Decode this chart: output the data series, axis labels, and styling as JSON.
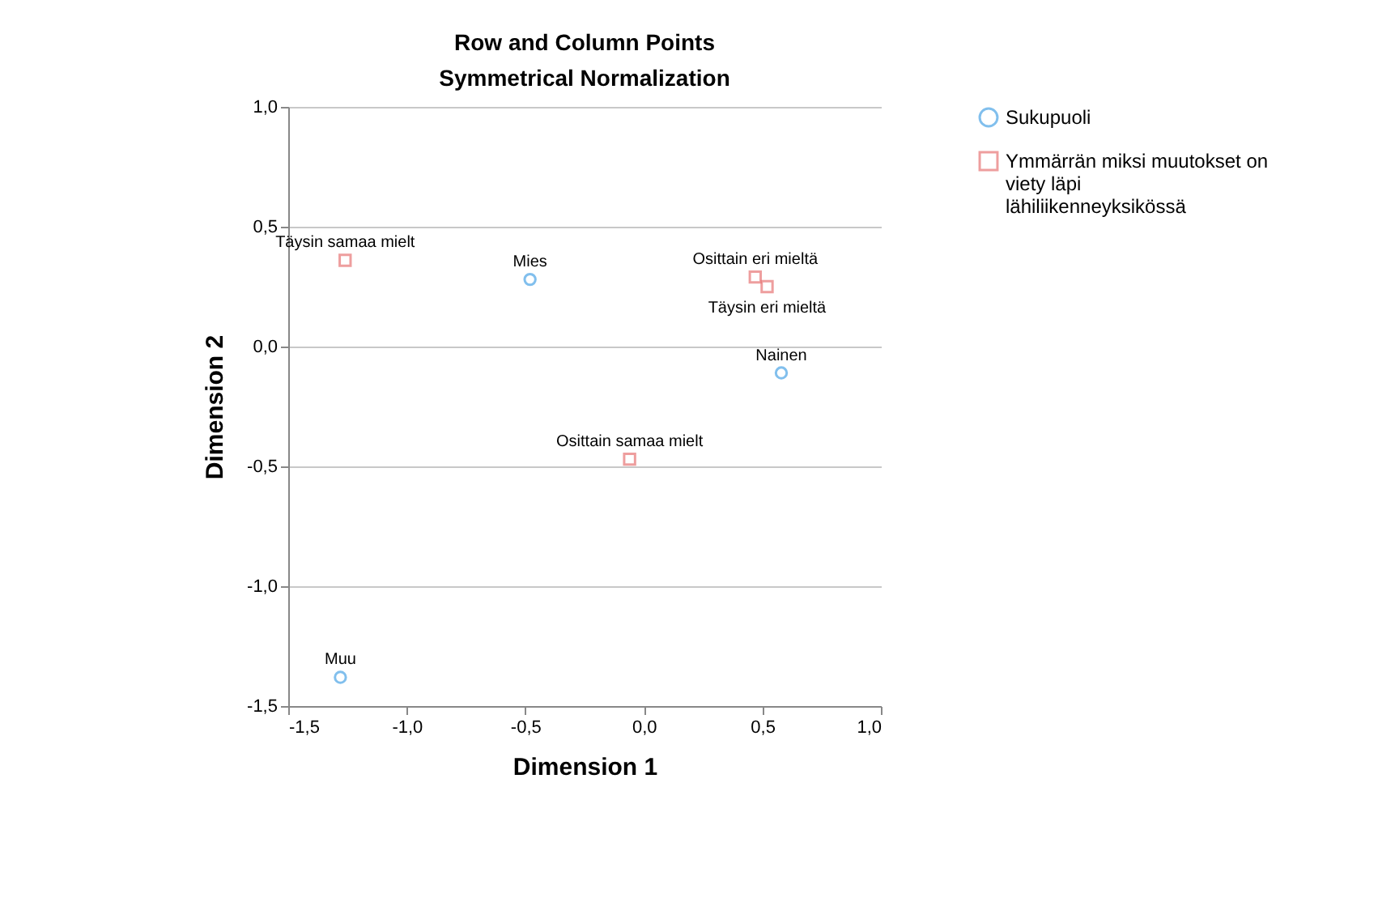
{
  "chart_data": {
    "type": "scatter",
    "title": "Row and Column Points",
    "subtitle": "Symmetrical Normalization",
    "xlabel": "Dimension 1",
    "ylabel": "Dimension 2",
    "xlim": [
      -1.5,
      1.0
    ],
    "xticks": [
      {
        "value": -1.5,
        "label": "-1,5"
      },
      {
        "value": -1.0,
        "label": "-1,0"
      },
      {
        "value": -0.5,
        "label": "-0,5"
      },
      {
        "value": 0.0,
        "label": "0,0"
      },
      {
        "value": 0.5,
        "label": "0,5"
      },
      {
        "value": 1.0,
        "label": "1,0"
      }
    ],
    "ylim": [
      -1.5,
      1.0
    ],
    "yticks": [
      {
        "value": -1.5,
        "label": "-1,5"
      },
      {
        "value": -1.0,
        "label": "-1,0"
      },
      {
        "value": -0.5,
        "label": "-0,5"
      },
      {
        "value": 0.0,
        "label": "0,0"
      },
      {
        "value": 0.5,
        "label": "0,5"
      },
      {
        "value": 1.0,
        "label": "1,0"
      }
    ],
    "grid": "y",
    "legend": "top right",
    "series": [
      {
        "name": "Sukupuoli",
        "color": "#4ca5e6",
        "marker": "circle",
        "x": [
          -0.48,
          0.58,
          -1.28
        ],
        "values": [
          0.28,
          -0.11,
          -1.38
        ],
        "value_labels": [
          "Mies",
          "Nainen",
          "Muu"
        ]
      },
      {
        "name": "Ymmärrän miksi muutokset on viety läpi lähiliikenneyksikössä",
        "color": "#e87676",
        "marker": "square",
        "x": [
          -1.26,
          0.47,
          0.52,
          -0.06
        ],
        "values": [
          0.36,
          0.29,
          0.25,
          -0.47
        ],
        "value_labels": [
          "Täysin samaa mielt",
          "Osittain eri mieltä",
          "Täysin eri mieltä",
          "Osittain samaa mielt"
        ]
      }
    ]
  }
}
